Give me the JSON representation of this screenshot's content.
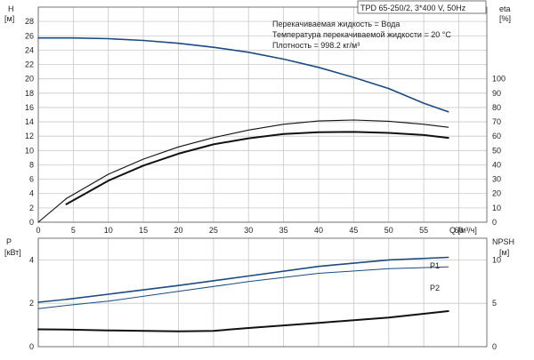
{
  "chart_data": [
    {
      "type": "line",
      "id": "head-efficiency",
      "title_box": "TPD 65-250/2, 3*400 V, 50Hz",
      "annotations": [
        "Перекачиваемая жидкость = Вода",
        "Температура перекачиваемой жидкости = 20 °C",
        "Плотность = 998.2 кг/м³"
      ],
      "left_axis": {
        "label": "H",
        "unit": "[м]",
        "range": [
          0,
          30
        ],
        "ticks": [
          0,
          2,
          4,
          6,
          8,
          10,
          12,
          14,
          16,
          18,
          20,
          22,
          24,
          26,
          28
        ]
      },
      "right_axis": {
        "label": "eta",
        "unit": "[%]",
        "range": [
          0,
          150
        ],
        "ticks": [
          0,
          10,
          20,
          30,
          40,
          50,
          60,
          70,
          80,
          90,
          100
        ]
      },
      "x_axis": {
        "label": "Q [м³/ч]",
        "range": [
          0,
          64
        ],
        "ticks": [
          0,
          5,
          10,
          15,
          20,
          25,
          30,
          35,
          40,
          45,
          50,
          55,
          60
        ]
      },
      "grid": true,
      "series": [
        {
          "key": "H",
          "axis": "left",
          "color": "#1a4a80",
          "width": 1.6,
          "x": [
            0,
            5,
            10,
            15,
            20,
            25,
            30,
            35,
            40,
            45,
            50,
            55,
            58.5
          ],
          "y": [
            25.7,
            25.7,
            25.6,
            25.35,
            24.95,
            24.4,
            23.7,
            22.75,
            21.6,
            20.2,
            18.65,
            16.6,
            15.4
          ]
        },
        {
          "key": "eta_upper",
          "axis": "right",
          "color": "#111111",
          "width": 1.1,
          "x": [
            0,
            4,
            10,
            15,
            20,
            25,
            30,
            35,
            40,
            45,
            50,
            55,
            58.5
          ],
          "y": [
            0,
            16.5,
            33.5,
            44,
            52.5,
            59,
            64.3,
            68.3,
            70.6,
            71.3,
            70.4,
            68.3,
            66.2
          ]
        },
        {
          "key": "eta_lower",
          "axis": "right",
          "color": "#111111",
          "width": 2.0,
          "x": [
            4,
            10,
            15,
            20,
            25,
            30,
            35,
            40,
            45,
            50,
            55,
            58.5
          ],
          "y": [
            12.5,
            29,
            39.5,
            47.8,
            54.3,
            58.5,
            61.5,
            62.8,
            63,
            62.3,
            60.8,
            58.8
          ]
        }
      ]
    },
    {
      "type": "line",
      "id": "power-npsh",
      "left_axis": {
        "label": "P",
        "unit": "[кВт]",
        "range": [
          0,
          5
        ],
        "ticks": [
          0,
          2,
          4
        ]
      },
      "right_axis": {
        "label": "NPSH",
        "unit": "[м]",
        "range": [
          0,
          12.5
        ],
        "ticks": [
          0,
          5,
          10
        ]
      },
      "x_axis": {
        "range": [
          0,
          64
        ],
        "ticks": [
          0,
          5,
          10,
          15,
          20,
          25,
          30,
          35,
          40,
          45,
          50,
          55,
          60
        ]
      },
      "grid": true,
      "series": [
        {
          "key": "P1",
          "name": "P1",
          "axis": "left",
          "color": "#1a4a80",
          "width": 1.6,
          "x": [
            4,
            10,
            20,
            30,
            40,
            50,
            58.5
          ],
          "y": [
            2.18,
            2.42,
            2.82,
            3.26,
            3.7,
            4.0,
            4.12
          ]
        },
        {
          "key": "P2",
          "name": "P2",
          "axis": "left",
          "color": "#1a4a80",
          "width": 1.0,
          "x": [
            0,
            4,
            10,
            20,
            30,
            40,
            50,
            58.5
          ],
          "y": [
            1.75,
            1.9,
            2.1,
            2.55,
            3.0,
            3.38,
            3.6,
            3.68
          ]
        },
        {
          "key": "P2_start",
          "axis": "left",
          "color": "#1a4a80",
          "width": 1.4,
          "x": [
            0,
            4
          ],
          "y": [
            2.05,
            2.18
          ]
        },
        {
          "key": "NPSH",
          "axis": "right",
          "color": "#111111",
          "width": 2.0,
          "x": [
            0,
            4,
            10,
            20,
            25,
            30,
            40,
            50,
            58.5
          ],
          "y": [
            2.0,
            1.98,
            1.88,
            1.76,
            1.82,
            2.15,
            2.75,
            3.35,
            4.1
          ]
        }
      ]
    }
  ]
}
